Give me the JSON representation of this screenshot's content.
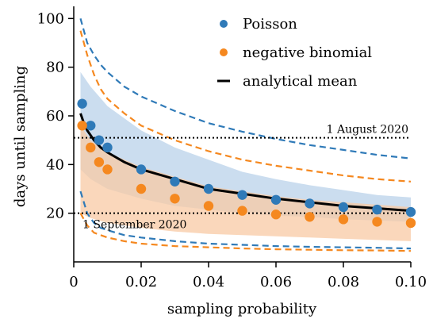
{
  "chart_data": {
    "type": "scatter",
    "xlabel": "sampling probability",
    "ylabel": "days until sampling",
    "xlim": [
      0,
      0.1
    ],
    "ylim": [
      0,
      105
    ],
    "xticks": [
      0,
      0.02,
      0.04,
      0.06,
      0.08,
      0.1
    ],
    "xtick_labels": [
      "0",
      "0.02",
      "0.04",
      "0.06",
      "0.08",
      "0.10"
    ],
    "yticks": [
      20,
      40,
      60,
      80,
      100
    ],
    "ytick_labels": [
      "20",
      "40",
      "60",
      "80",
      "100"
    ],
    "grid": false,
    "legend_position": "top-right",
    "colors": {
      "poisson": "#2f7ab8",
      "poisson_band": "#b9d2ea",
      "negbin": "#f5881f",
      "negbin_band": "#f8c9a4",
      "mean": "#000000"
    },
    "legend": [
      {
        "key": "poisson",
        "label": "Poisson",
        "kind": "dot"
      },
      {
        "key": "negbin",
        "label": "negative binomial",
        "kind": "dot"
      },
      {
        "key": "mean",
        "label": "analytical mean",
        "kind": "line"
      }
    ],
    "series": [
      {
        "name": "Poisson",
        "kind": "points",
        "x": [
          0.0025,
          0.005,
          0.0075,
          0.01,
          0.02,
          0.03,
          0.04,
          0.05,
          0.06,
          0.07,
          0.08,
          0.09,
          0.1
        ],
        "y": [
          65,
          56,
          50,
          47,
          38,
          33,
          30,
          27.5,
          25.5,
          24,
          22.5,
          21.5,
          20.5
        ]
      },
      {
        "name": "negative binomial",
        "kind": "points",
        "x": [
          0.0025,
          0.005,
          0.0075,
          0.01,
          0.02,
          0.03,
          0.04,
          0.05,
          0.06,
          0.07,
          0.08,
          0.09,
          0.1
        ],
        "y": [
          56,
          47,
          41,
          38,
          30,
          26,
          23,
          21,
          19.5,
          18.5,
          17.5,
          16.5,
          16
        ]
      },
      {
        "name": "analytical mean",
        "kind": "line",
        "x": [
          0.002,
          0.003,
          0.004,
          0.005,
          0.006,
          0.008,
          0.01,
          0.015,
          0.02,
          0.03,
          0.04,
          0.05,
          0.06,
          0.07,
          0.08,
          0.09,
          0.1
        ],
        "y": [
          61,
          57,
          54,
          52,
          50,
          47,
          45,
          41,
          38,
          34,
          30,
          28,
          26,
          24.5,
          23,
          22,
          21
        ]
      }
    ],
    "bands": [
      {
        "key": "poisson_band",
        "x": [
          0.002,
          0.005,
          0.01,
          0.02,
          0.03,
          0.04,
          0.05,
          0.06,
          0.07,
          0.08,
          0.09,
          0.1
        ],
        "lower": [
          38,
          34,
          30,
          26,
          23,
          21.5,
          20,
          19,
          18.5,
          17.5,
          17,
          16.5
        ],
        "upper": [
          78,
          72,
          64,
          54,
          47,
          42,
          37,
          34,
          31.5,
          29.5,
          27.5,
          26.5
        ]
      },
      {
        "key": "negbin_band",
        "x": [
          0.002,
          0.005,
          0.01,
          0.02,
          0.03,
          0.04,
          0.05,
          0.06,
          0.07,
          0.08,
          0.09,
          0.1
        ],
        "lower": [
          20,
          18,
          16,
          14,
          12.5,
          11.5,
          11,
          10.5,
          10,
          9.5,
          9,
          8.5
        ],
        "upper": [
          56,
          50,
          45,
          39,
          35,
          31,
          29,
          27,
          25.5,
          24.5,
          23.5,
          22.5
        ]
      }
    ],
    "dashed_lines": [
      {
        "key": "poisson",
        "x": [
          0.002,
          0.004,
          0.006,
          0.008,
          0.01,
          0.015,
          0.02,
          0.03,
          0.04,
          0.05,
          0.06,
          0.07,
          0.08,
          0.09,
          0.1
        ],
        "y": [
          100,
          90,
          85,
          81,
          78,
          72,
          68,
          62,
          57,
          53.5,
          50.5,
          48,
          46,
          44,
          42.5
        ]
      },
      {
        "key": "poisson",
        "x": [
          0.002,
          0.004,
          0.006,
          0.008,
          0.01,
          0.015,
          0.02,
          0.03,
          0.04,
          0.05,
          0.06,
          0.07,
          0.08,
          0.09,
          0.1
        ],
        "y": [
          29,
          20,
          16,
          14,
          13,
          11,
          10,
          8.5,
          7.5,
          7,
          6.5,
          6.2,
          6,
          5.8,
          5.5
        ]
      },
      {
        "key": "negbin",
        "x": [
          0.002,
          0.004,
          0.006,
          0.008,
          0.01,
          0.015,
          0.02,
          0.03,
          0.04,
          0.05,
          0.06,
          0.07,
          0.08,
          0.09,
          0.1
        ],
        "y": [
          95,
          85,
          77,
          71,
          67,
          61,
          56,
          50,
          45.5,
          42,
          39.5,
          37.5,
          35.5,
          34,
          33
        ]
      },
      {
        "key": "negbin",
        "x": [
          0.002,
          0.004,
          0.006,
          0.008,
          0.01,
          0.015,
          0.02,
          0.03,
          0.04,
          0.05,
          0.06,
          0.07,
          0.08,
          0.09,
          0.1
        ],
        "y": [
          20,
          15,
          12,
          11,
          10,
          8.5,
          7.5,
          6.5,
          6,
          5.5,
          5.2,
          5,
          4.8,
          4.7,
          4.5
        ]
      }
    ],
    "reference_lines": [
      {
        "y": 51,
        "label": "1 August 2020"
      },
      {
        "y": 20,
        "label": "1 September 2020"
      }
    ]
  }
}
